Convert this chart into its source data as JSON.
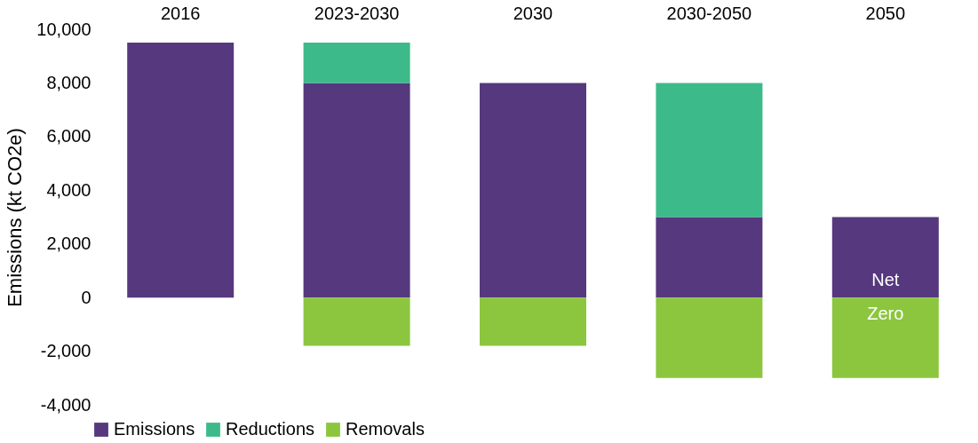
{
  "chart_data": {
    "type": "bar",
    "stacked": true,
    "ylabel": "Emissions (kt CO2e)",
    "categories": [
      "2016",
      "2023-2030",
      "2030",
      "2030-2050",
      "2050"
    ],
    "series": [
      {
        "name": "Emissions",
        "color": "#55387d",
        "values": [
          9500,
          8000,
          8000,
          3000,
          3000
        ]
      },
      {
        "name": "Reductions",
        "color": "#3dba8a",
        "values": [
          null,
          1500,
          null,
          5000,
          null
        ]
      },
      {
        "name": "Removals",
        "color": "#8cc63f",
        "values": [
          null,
          -1800,
          -1800,
          -3000,
          -3000
        ]
      }
    ],
    "ylim": [
      -4000,
      10000
    ],
    "yticks": [
      {
        "value": -4000,
        "label": "-4,000"
      },
      {
        "value": -2000,
        "label": "-2,000"
      },
      0,
      {
        "value": 2000,
        "label": "2,000"
      },
      {
        "value": 4000,
        "label": "4,000"
      },
      {
        "value": 6000,
        "label": "6,000"
      },
      {
        "value": 8000,
        "label": "8,000"
      },
      {
        "value": 10000,
        "label": "10,000"
      }
    ],
    "grid": false,
    "legend": "bottom",
    "annotations": [
      "Net",
      "Zero"
    ]
  }
}
